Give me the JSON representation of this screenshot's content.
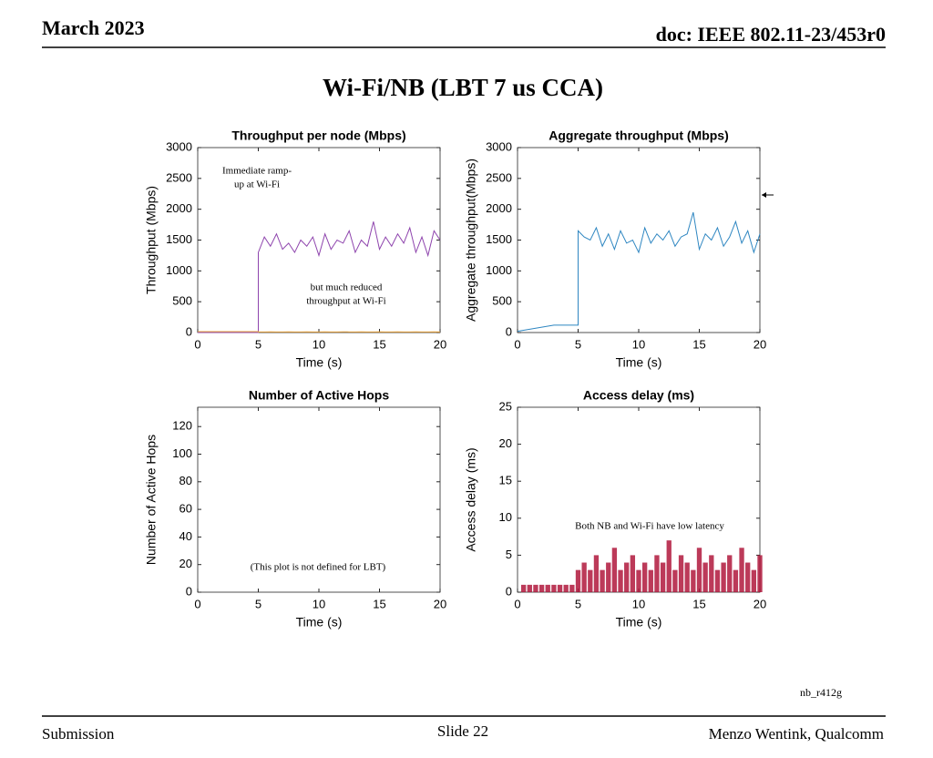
{
  "header": {
    "date": "March 2023",
    "doc": "doc: IEEE 802.11-23/453r0"
  },
  "title": "Wi-Fi/NB (LBT 7 us CCA)",
  "chart_data": [
    {
      "type": "line",
      "title": "Throughput per node (Mbps)",
      "xlabel": "Time (s)",
      "ylabel": "Throughput (Mbps)",
      "x": [
        0,
        5,
        5,
        5.5,
        6,
        6.5,
        7,
        7.5,
        8,
        8.5,
        9,
        9.5,
        10,
        10.5,
        11,
        11.5,
        12,
        12.5,
        13,
        13.5,
        14,
        14.5,
        15,
        15.5,
        16,
        16.5,
        17,
        17.5,
        18,
        18.5,
        19,
        19.5,
        20
      ],
      "series": [
        {
          "color": "#8e44ad",
          "values": [
            0,
            0,
            1300,
            1550,
            1400,
            1600,
            1350,
            1450,
            1300,
            1500,
            1400,
            1550,
            1250,
            1600,
            1350,
            1500,
            1450,
            1650,
            1300,
            1500,
            1400,
            1800,
            1350,
            1550,
            1400,
            1600,
            1450,
            1700,
            1300,
            1550,
            1250,
            1650,
            1500
          ]
        },
        {
          "color": "#e8a33d",
          "values": [
            15,
            15,
            10,
            10,
            12,
            10,
            10,
            12,
            10,
            10,
            12,
            10,
            10,
            12,
            10,
            10,
            12,
            10,
            10,
            12,
            10,
            10,
            12,
            10,
            10,
            12,
            10,
            10,
            12,
            10,
            10,
            12,
            10
          ]
        }
      ],
      "xlim": [
        0,
        20
      ],
      "ylim": [
        0,
        3000
      ],
      "xticks": [
        0,
        5,
        10,
        15,
        20
      ],
      "yticks": [
        0,
        500,
        1000,
        1500,
        2000,
        2500,
        3000
      ],
      "annotations": [
        [
          "Immediate ramp-",
          "up at Wi-Fi"
        ],
        [
          "but much reduced",
          "throughput at Wi-Fi"
        ]
      ]
    },
    {
      "type": "line",
      "title": "Aggregate throughput (Mbps)",
      "xlabel": "Time (s)",
      "ylabel": "Aggregate throughput(Mbps)",
      "x": [
        0,
        3,
        5,
        5,
        5.5,
        6,
        6.5,
        7,
        7.5,
        8,
        8.5,
        9,
        9.5,
        10,
        10.5,
        11,
        11.5,
        12,
        12.5,
        13,
        13.5,
        14,
        14.5,
        15,
        15.5,
        16,
        16.5,
        17,
        17.5,
        18,
        18.5,
        19,
        19.5,
        20
      ],
      "series": [
        {
          "color": "#2e86c1",
          "values": [
            20,
            120,
            120,
            1650,
            1550,
            1500,
            1700,
            1400,
            1600,
            1350,
            1650,
            1450,
            1500,
            1300,
            1700,
            1450,
            1600,
            1500,
            1650,
            1400,
            1550,
            1600,
            1950,
            1350,
            1600,
            1500,
            1700,
            1400,
            1550,
            1800,
            1450,
            1650,
            1300,
            1600
          ]
        }
      ],
      "xlim": [
        0,
        20
      ],
      "ylim": [
        0,
        3000
      ],
      "xticks": [
        0,
        5,
        10,
        15,
        20
      ],
      "yticks": [
        0,
        500,
        1000,
        1500,
        2000,
        2500,
        3000
      ]
    },
    {
      "type": "line",
      "title": "Number of Active Hops",
      "xlabel": "Time (s)",
      "ylabel": "Number of Active Hops",
      "series": [],
      "xlim": [
        0,
        20
      ],
      "ylim": [
        0,
        134
      ],
      "xticks": [
        0,
        5,
        10,
        15,
        20
      ],
      "yticks": [
        0,
        20,
        40,
        60,
        80,
        100,
        120
      ],
      "annotations": [
        [
          "(This plot is not defined for LBT)"
        ]
      ]
    },
    {
      "type": "bar",
      "title": "Access delay (ms)",
      "xlabel": "Time (s)",
      "ylabel": "Access delay (ms)",
      "x": [
        0.5,
        1,
        1.5,
        2,
        2.5,
        3,
        3.5,
        4,
        4.5,
        5,
        5.5,
        6,
        6.5,
        7,
        7.5,
        8,
        8.5,
        9,
        9.5,
        10,
        10.5,
        11,
        11.5,
        12,
        12.5,
        13,
        13.5,
        14,
        14.5,
        15,
        15.5,
        16,
        16.5,
        17,
        17.5,
        18,
        18.5,
        19,
        19.5,
        20
      ],
      "series": [
        {
          "color": "#b0173c",
          "values": [
            1,
            1,
            1,
            1,
            1,
            1,
            1,
            1,
            1,
            3,
            4,
            3,
            5,
            3,
            4,
            6,
            3,
            4,
            5,
            3,
            4,
            3,
            5,
            4,
            7,
            3,
            5,
            4,
            3,
            6,
            4,
            5,
            3,
            4,
            5,
            3,
            6,
            4,
            3,
            5
          ]
        }
      ],
      "xlim": [
        0,
        20
      ],
      "ylim": [
        0,
        25
      ],
      "xticks": [
        0,
        5,
        10,
        15,
        20
      ],
      "yticks": [
        0,
        5,
        10,
        15,
        20,
        25
      ],
      "annotations": [
        [
          "Both NB and Wi-Fi have low latency"
        ]
      ]
    }
  ],
  "code": "nb_r412g",
  "footer": {
    "left": "Submission",
    "center": "Slide 22",
    "right": "Menzo Wentink, Qualcomm"
  }
}
